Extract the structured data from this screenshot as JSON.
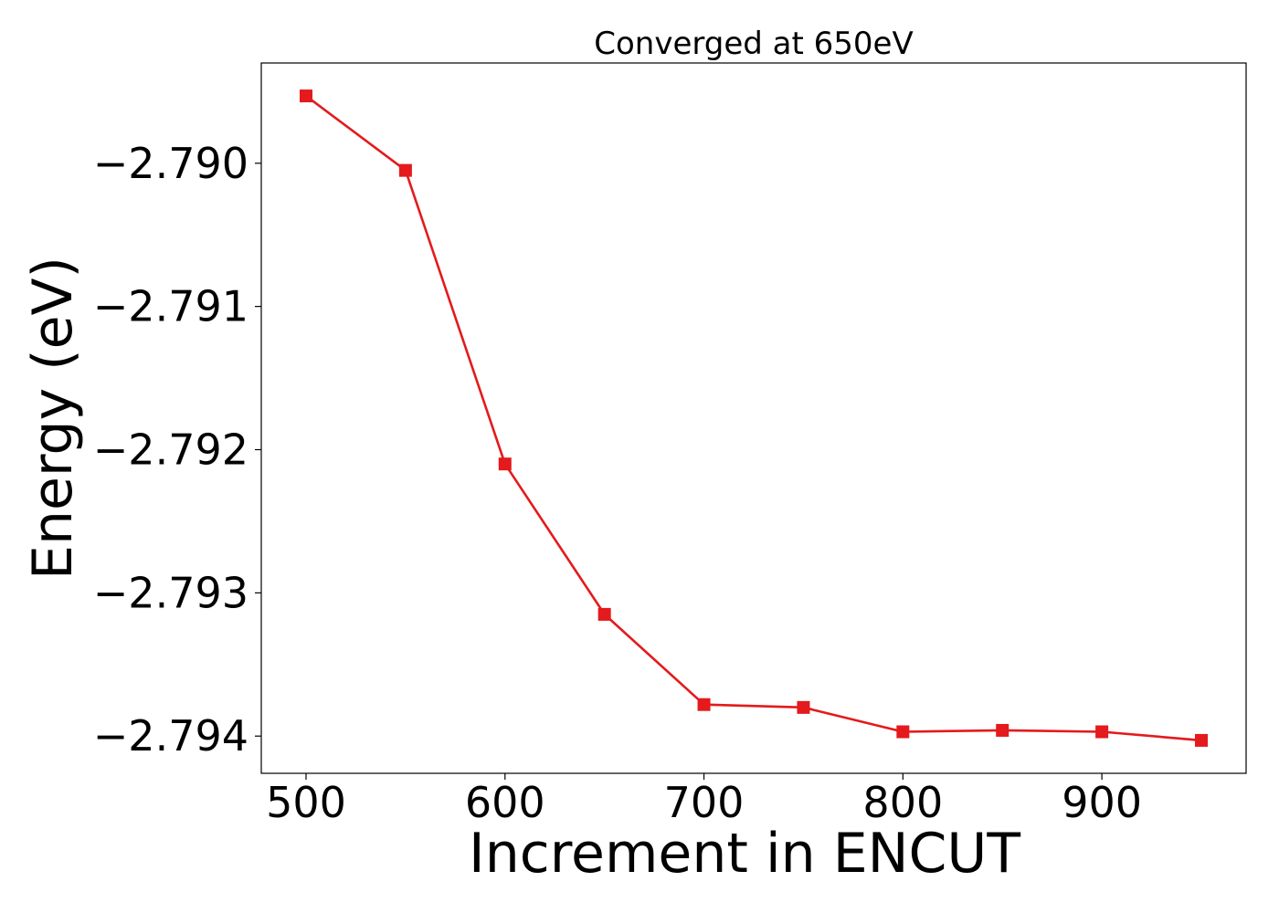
{
  "chart_data": {
    "type": "line",
    "title": "Converged at 650eV",
    "xlabel": "Increment in ENCUT",
    "ylabel": "Energy (eV)",
    "x": [
      500,
      550,
      600,
      650,
      700,
      750,
      800,
      850,
      900,
      950
    ],
    "series": [
      {
        "values": [
          -2.78953,
          -2.79005,
          -2.7921,
          -2.79315,
          -2.79378,
          -2.7938,
          -2.79397,
          -2.79396,
          -2.79397,
          -2.79403
        ],
        "color": "#e41a1c",
        "marker": "square"
      }
    ],
    "xticks": [
      500,
      600,
      700,
      800,
      900
    ],
    "xtick_labels": [
      "500",
      "600",
      "700",
      "800",
      "900"
    ],
    "yticks": [
      -2.79,
      -2.791,
      -2.792,
      -2.793,
      -2.794
    ],
    "ytick_labels": [
      "−2.790",
      "−2.791",
      "−2.792",
      "−2.793",
      "−2.794"
    ],
    "xlim": [
      477.5,
      972.5
    ],
    "ylim": [
      -2.79426,
      -2.7893
    ],
    "grid": false,
    "legend": "none"
  }
}
